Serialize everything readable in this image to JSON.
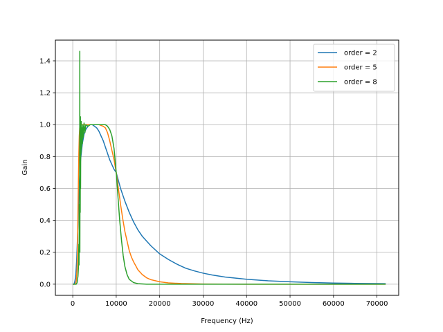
{
  "chart_data": {
    "type": "line",
    "title": "",
    "xlabel": "Frequency (Hz)",
    "ylabel": "Gain",
    "xlim": [
      -4000,
      75000
    ],
    "ylim": [
      -0.07,
      1.53
    ],
    "xticks": [
      0,
      10000,
      20000,
      30000,
      40000,
      50000,
      60000,
      70000
    ],
    "xtick_labels": [
      "0",
      "10000",
      "20000",
      "30000",
      "40000",
      "50000",
      "60000",
      "70000"
    ],
    "yticks": [
      0.0,
      0.2,
      0.4,
      0.6,
      0.8,
      1.0,
      1.2,
      1.4
    ],
    "ytick_labels": [
      "0.0",
      "0.2",
      "0.4",
      "0.6",
      "0.8",
      "1.0",
      "1.2",
      "1.4"
    ],
    "grid": true,
    "legend_position": "top-right",
    "series": [
      {
        "name": "order = 2",
        "color": "#1f77b4",
        "points": [
          [
            0,
            0.0
          ],
          [
            300,
            0.0
          ],
          [
            500,
            0.02
          ],
          [
            700,
            0.06
          ],
          [
            900,
            0.15
          ],
          [
            1100,
            0.3
          ],
          [
            1300,
            0.48
          ],
          [
            1500,
            0.63
          ],
          [
            1800,
            0.78
          ],
          [
            2200,
            0.88
          ],
          [
            2600,
            0.94
          ],
          [
            3000,
            0.97
          ],
          [
            3500,
            0.99
          ],
          [
            4000,
            1.0
          ],
          [
            4500,
            1.0
          ],
          [
            5000,
            0.99
          ],
          [
            5500,
            0.98
          ],
          [
            6000,
            0.96
          ],
          [
            6500,
            0.93
          ],
          [
            7000,
            0.9
          ],
          [
            7500,
            0.86
          ],
          [
            8000,
            0.82
          ],
          [
            8500,
            0.78
          ],
          [
            9000,
            0.75
          ],
          [
            9500,
            0.72
          ],
          [
            10000,
            0.7
          ],
          [
            11000,
            0.6
          ],
          [
            12000,
            0.52
          ],
          [
            13000,
            0.45
          ],
          [
            14000,
            0.39
          ],
          [
            15000,
            0.34
          ],
          [
            16000,
            0.3
          ],
          [
            17000,
            0.27
          ],
          [
            18000,
            0.24
          ],
          [
            20000,
            0.19
          ],
          [
            22000,
            0.155
          ],
          [
            24000,
            0.125
          ],
          [
            26000,
            0.1
          ],
          [
            28000,
            0.083
          ],
          [
            30000,
            0.069
          ],
          [
            32000,
            0.058
          ],
          [
            35000,
            0.045
          ],
          [
            40000,
            0.031
          ],
          [
            45000,
            0.021
          ],
          [
            50000,
            0.015
          ],
          [
            55000,
            0.01
          ],
          [
            60000,
            0.007
          ],
          [
            65000,
            0.005
          ],
          [
            72000,
            0.003
          ]
        ]
      },
      {
        "name": "order = 5",
        "color": "#ff7f0e",
        "points": [
          [
            0,
            0.0
          ],
          [
            600,
            0.0
          ],
          [
            800,
            0.02
          ],
          [
            1000,
            0.1
          ],
          [
            1100,
            0.25
          ],
          [
            1200,
            0.45
          ],
          [
            1300,
            0.65
          ],
          [
            1400,
            0.82
          ],
          [
            1500,
            0.93
          ],
          [
            1600,
            0.98
          ],
          [
            1800,
            1.0
          ],
          [
            2500,
            1.0
          ],
          [
            4000,
            1.0
          ],
          [
            6000,
            1.0
          ],
          [
            7000,
            0.99
          ],
          [
            7500,
            0.98
          ],
          [
            8000,
            0.95
          ],
          [
            8500,
            0.9
          ],
          [
            9000,
            0.84
          ],
          [
            9500,
            0.78
          ],
          [
            10000,
            0.7
          ],
          [
            10500,
            0.6
          ],
          [
            11000,
            0.5
          ],
          [
            11500,
            0.41
          ],
          [
            12000,
            0.33
          ],
          [
            12500,
            0.27
          ],
          [
            13000,
            0.21
          ],
          [
            13500,
            0.17
          ],
          [
            14000,
            0.14
          ],
          [
            15000,
            0.09
          ],
          [
            16000,
            0.06
          ],
          [
            17000,
            0.04
          ],
          [
            18000,
            0.028
          ],
          [
            20000,
            0.015
          ],
          [
            22000,
            0.008
          ],
          [
            25000,
            0.004
          ],
          [
            30000,
            0.001
          ],
          [
            40000,
            0.0
          ],
          [
            72000,
            0.0
          ]
        ]
      },
      {
        "name": "order = 8",
        "color": "#2ca02c",
        "points": [
          [
            0,
            0.0
          ],
          [
            800,
            0.0
          ],
          [
            1000,
            0.01
          ],
          [
            1200,
            0.05
          ],
          [
            1300,
            0.1
          ],
          [
            1400,
            0.25
          ],
          [
            1450,
            0.12
          ],
          [
            1500,
            0.5
          ],
          [
            1550,
            0.3
          ],
          [
            1600,
            0.75
          ],
          [
            1620,
            1.46
          ],
          [
            1640,
            0.2
          ],
          [
            1680,
            0.95
          ],
          [
            1720,
            0.45
          ],
          [
            1760,
            1.05
          ],
          [
            1800,
            0.6
          ],
          [
            1850,
            0.97
          ],
          [
            1900,
            0.82
          ],
          [
            1950,
            1.02
          ],
          [
            2000,
            0.85
          ],
          [
            2100,
            0.98
          ],
          [
            2200,
            0.88
          ],
          [
            2300,
            1.0
          ],
          [
            2400,
            0.92
          ],
          [
            2600,
            1.01
          ],
          [
            2800,
            0.95
          ],
          [
            3000,
            1.0
          ],
          [
            3500,
            0.99
          ],
          [
            4000,
            1.0
          ],
          [
            6000,
            1.0
          ],
          [
            7500,
            1.0
          ],
          [
            8000,
            0.99
          ],
          [
            8500,
            0.97
          ],
          [
            9000,
            0.93
          ],
          [
            9500,
            0.85
          ],
          [
            10000,
            0.7
          ],
          [
            10400,
            0.55
          ],
          [
            10800,
            0.4
          ],
          [
            11200,
            0.28
          ],
          [
            11600,
            0.18
          ],
          [
            12000,
            0.11
          ],
          [
            12500,
            0.06
          ],
          [
            13000,
            0.03
          ],
          [
            14000,
            0.01
          ],
          [
            15000,
            0.003
          ],
          [
            17000,
            0.0
          ],
          [
            72000,
            0.0
          ]
        ]
      }
    ]
  }
}
